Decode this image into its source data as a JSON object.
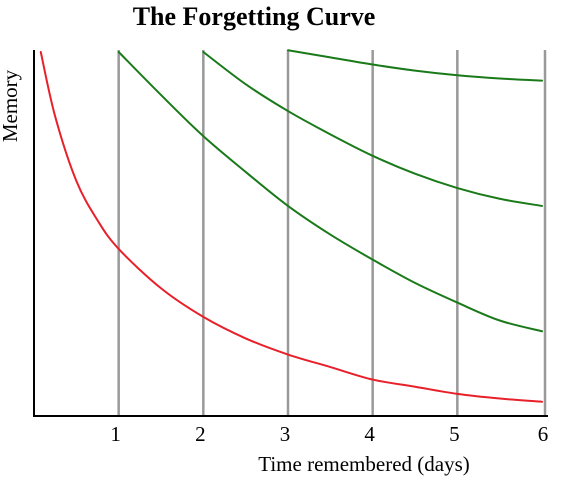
{
  "chart_data": {
    "type": "line",
    "title": "The Forgetting Curve",
    "xlabel": "Time remembered (days)",
    "ylabel": "Memory",
    "xlim": [
      0,
      6
    ],
    "ylim": [
      0,
      100
    ],
    "xticks": [
      1,
      2,
      3,
      4,
      5,
      6
    ],
    "grid": "vertical lines at each day",
    "legend": "none",
    "colors": {
      "initial": "#e8202a",
      "review": "#1a7a1a",
      "grid": "#999999",
      "axis": "#000000"
    },
    "series": [
      {
        "color": "#e8202a",
        "x": [
          0.08,
          0.25,
          0.5,
          0.75,
          1.0,
          1.5,
          2.0,
          2.5,
          3.0,
          3.5,
          4.0,
          4.5,
          5.0,
          5.5,
          6.0
        ],
        "y": [
          100,
          82,
          64,
          53,
          45,
          34,
          26,
          20,
          15.5,
          12,
          8.5,
          6.5,
          4.5,
          3.2,
          2.3
        ]
      },
      {
        "color": "#1a7a1a",
        "x": [
          1.0,
          1.5,
          2.0,
          2.5,
          3.0,
          3.5,
          4.0,
          4.5,
          5.0,
          5.5,
          6.0
        ],
        "y": [
          100,
          88,
          76.5,
          66.5,
          57,
          49,
          42,
          35.5,
          30,
          25,
          22
        ]
      },
      {
        "color": "#1a7a1a",
        "x": [
          2.0,
          2.5,
          3.0,
          3.5,
          4.0,
          4.5,
          5.0,
          5.5,
          6.0
        ],
        "y": [
          100,
          91,
          83.5,
          77,
          71,
          66,
          62,
          59,
          57
        ]
      },
      {
        "color": "#1a7a1a",
        "x": [
          3.0,
          3.5,
          4.0,
          4.5,
          5.0,
          5.5,
          6.0
        ],
        "y": [
          100.5,
          98.5,
          96.5,
          94.8,
          93.5,
          92.6,
          92
        ]
      }
    ]
  }
}
